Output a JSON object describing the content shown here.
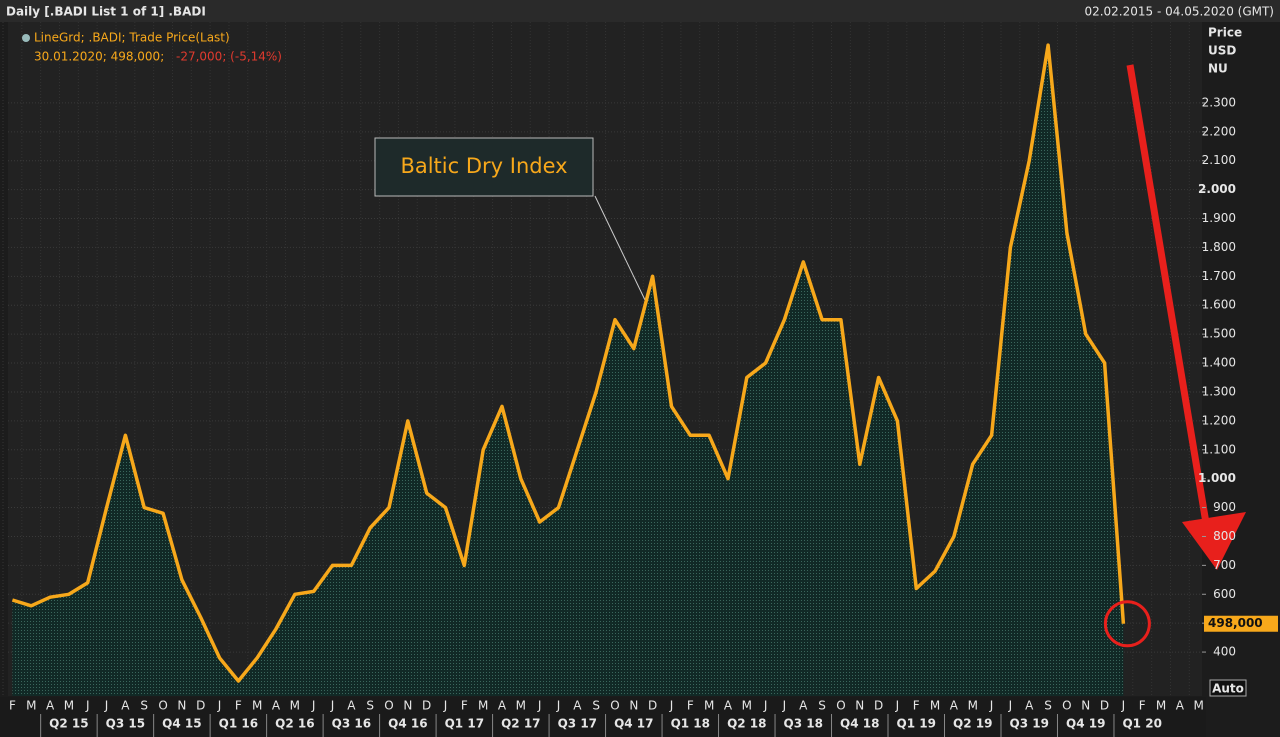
{
  "header": {
    "left": "Daily [.BADI List 1 of 1] .BADI",
    "right": "02.02.2015 - 04.05.2020 (GMT)"
  },
  "legend": {
    "line1": "LineGrd; .BADI; Trade Price(Last)",
    "line2a": "30.01.2020; 498,000;",
    "line2b": "-27,000; (-5,14%)"
  },
  "axis_header": [
    "Price",
    "USD",
    "NU"
  ],
  "button": "Auto",
  "chart_data": {
    "type": "line",
    "annotation": "Baltic Dry Index",
    "last_label": "498,000",
    "last_value": 498,
    "color": "#f7a81b",
    "grid": true,
    "ylim": [
      248,
      2580
    ],
    "yticks": [
      400,
      500,
      600,
      700,
      800,
      900,
      {
        "value": 1000,
        "label": "1.000"
      },
      {
        "value": 1100,
        "label": "1.100"
      },
      {
        "value": 1200,
        "label": "1.200"
      },
      {
        "value": 1300,
        "label": "1.300"
      },
      {
        "value": 1400,
        "label": "1.400"
      },
      {
        "value": 1500,
        "label": "1.500"
      },
      {
        "value": 1600,
        "label": "1.600"
      },
      {
        "value": 1700,
        "label": "1.700"
      },
      {
        "value": 1800,
        "label": "1.800"
      },
      {
        "value": 1900,
        "label": "1.900"
      },
      {
        "value": 2000,
        "label": "2.000"
      },
      {
        "value": 2100,
        "label": "2.100"
      },
      {
        "value": 2200,
        "label": "2.200"
      },
      {
        "value": 2300,
        "label": "2.300"
      }
    ],
    "months": [
      "F",
      "M",
      "A",
      "M",
      "J",
      "J",
      "A",
      "S",
      "O",
      "N",
      "D",
      "J",
      "F",
      "M",
      "A",
      "M",
      "J",
      "J",
      "A",
      "S",
      "O",
      "N",
      "D",
      "J",
      "F",
      "M",
      "A",
      "M",
      "J",
      "J",
      "A",
      "S",
      "O",
      "N",
      "D",
      "J",
      "F",
      "M",
      "A",
      "M",
      "J",
      "J",
      "A",
      "S",
      "O",
      "N",
      "D",
      "J",
      "F",
      "M",
      "A",
      "M",
      "J",
      "J",
      "A",
      "S",
      "O",
      "N",
      "D",
      "J",
      "F",
      "M",
      "A",
      "M"
    ],
    "quarters": [
      "Q2 15",
      "Q3 15",
      "Q4 15",
      "Q1 16",
      "Q2 16",
      "Q3 16",
      "Q4 16",
      "Q1 17",
      "Q2 17",
      "Q3 17",
      "Q4 17",
      "Q1 18",
      "Q2 18",
      "Q3 18",
      "Q4 18",
      "Q1 19",
      "Q2 19",
      "Q3 19",
      "Q4 19",
      "Q1 20"
    ],
    "x": [
      "2015-02",
      "2015-03",
      "2015-04",
      "2015-05",
      "2015-06",
      "2015-07",
      "2015-08",
      "2015-09",
      "2015-10",
      "2015-11",
      "2015-12",
      "2016-01",
      "2016-02",
      "2016-03",
      "2016-04",
      "2016-05",
      "2016-06",
      "2016-07",
      "2016-08",
      "2016-09",
      "2016-10",
      "2016-11",
      "2016-12",
      "2017-01",
      "2017-02",
      "2017-03",
      "2017-04",
      "2017-05",
      "2017-06",
      "2017-07",
      "2017-08",
      "2017-09",
      "2017-10",
      "2017-11",
      "2017-12",
      "2018-01",
      "2018-02",
      "2018-03",
      "2018-04",
      "2018-05",
      "2018-06",
      "2018-07",
      "2018-08",
      "2018-09",
      "2018-10",
      "2018-11",
      "2018-12",
      "2019-01",
      "2019-02",
      "2019-03",
      "2019-04",
      "2019-05",
      "2019-06",
      "2019-07",
      "2019-08",
      "2019-09",
      "2019-10",
      "2019-11",
      "2019-12",
      "2020-01"
    ],
    "values": [
      580,
      560,
      590,
      600,
      640,
      900,
      1150,
      900,
      880,
      650,
      520,
      380,
      300,
      380,
      480,
      600,
      610,
      700,
      700,
      830,
      900,
      1200,
      950,
      900,
      700,
      1100,
      1250,
      1000,
      850,
      900,
      1100,
      1300,
      1550,
      1450,
      1700,
      1250,
      1150,
      1150,
      1000,
      1350,
      1400,
      1550,
      1750,
      1550,
      1550,
      1050,
      1350,
      1200,
      620,
      680,
      800,
      1050,
      1150,
      1800,
      2100,
      2500,
      1850,
      1500,
      1400,
      498
    ]
  }
}
